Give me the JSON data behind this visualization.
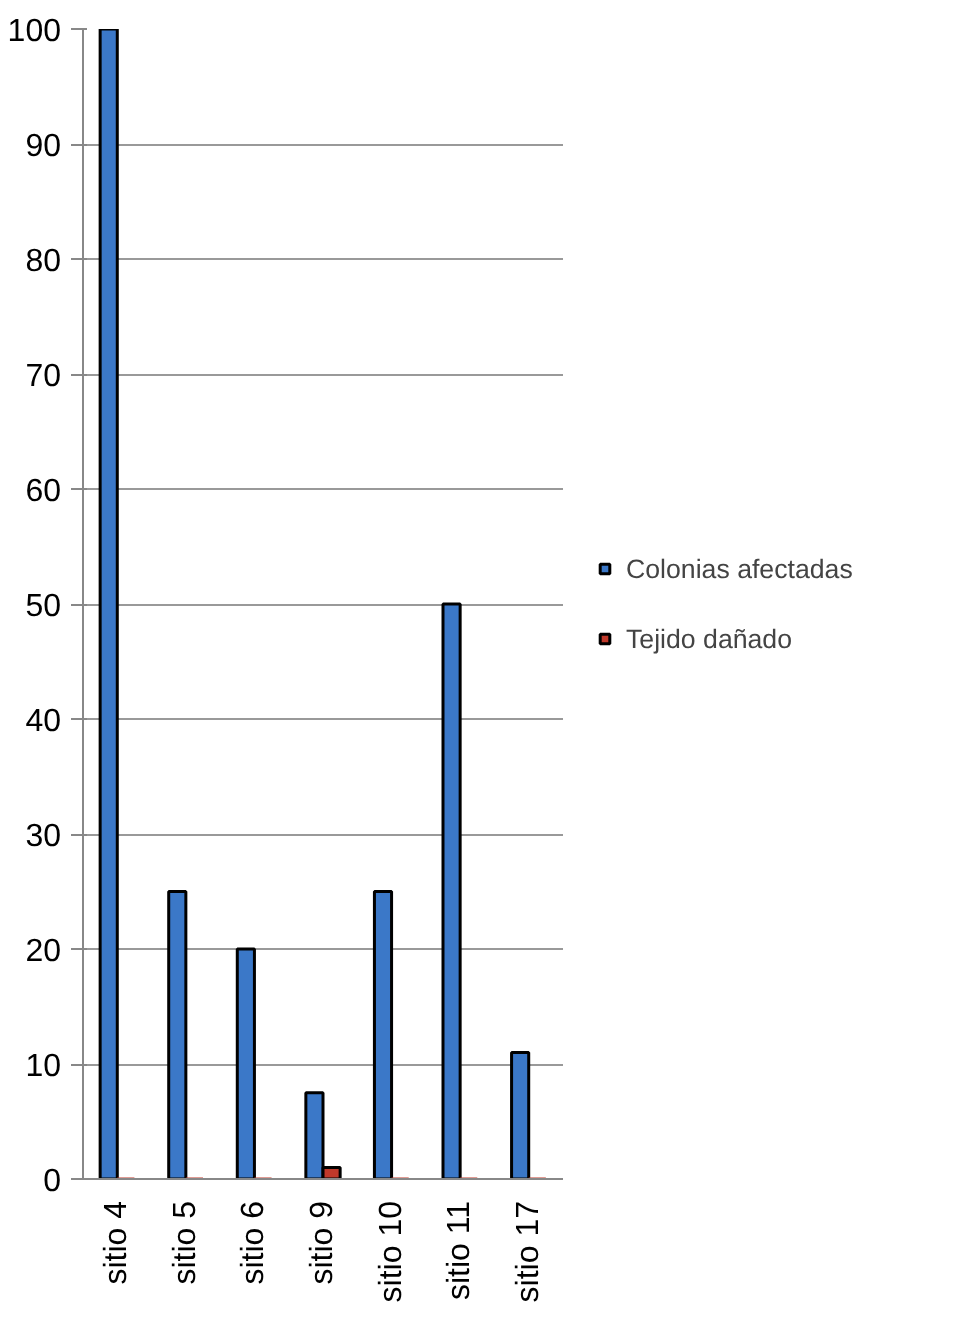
{
  "chart_data": {
    "type": "bar",
    "categories": [
      "sitio 4",
      "sitio 5",
      "sitio 6",
      "sitio 9",
      "sitio 10",
      "sitio 11",
      "sitio 17"
    ],
    "series": [
      {
        "name": "Colonias afectadas",
        "color": "#3b78c8",
        "values": [
          100,
          25,
          20,
          7.5,
          25,
          50,
          11
        ]
      },
      {
        "name": "Tejido dañado",
        "color": "#c0392b",
        "values": [
          0,
          0,
          0,
          1,
          0,
          0,
          0
        ]
      }
    ],
    "ylim": [
      0,
      100
    ],
    "yticks": [
      0,
      10,
      20,
      30,
      40,
      50,
      60,
      70,
      80,
      90,
      100
    ],
    "grid": "y",
    "legend": "right"
  }
}
